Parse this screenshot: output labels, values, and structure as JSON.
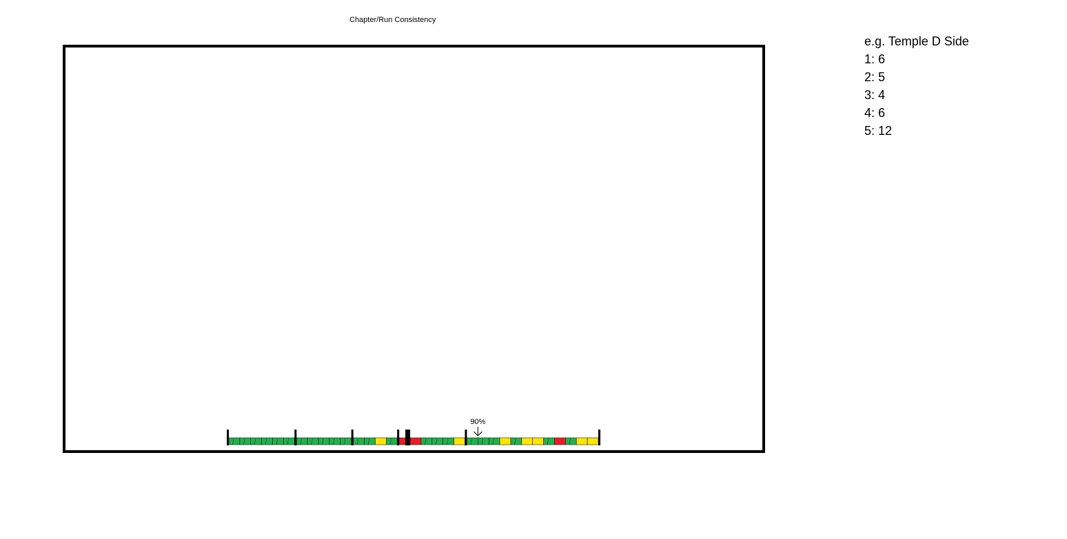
{
  "title": "Chapter/Run Consistency",
  "example": {
    "heading": "e.g. Temple D Side",
    "rooms": [
      {
        "label": "1: 6"
      },
      {
        "label": "2: 5"
      },
      {
        "label": "3: 4"
      },
      {
        "label": "4: 6"
      },
      {
        "label": "5: 12"
      }
    ]
  },
  "colors": {
    "green": "#22b14c",
    "yellow": "#ffe600",
    "red": "#ed1c24",
    "frame": "#000000"
  },
  "progress_bar": {
    "marker": {
      "label": "90%",
      "segment_index": 22
    },
    "current_segment_index": 16,
    "rooms": [
      {
        "room": 1,
        "segments": [
          "green",
          "green",
          "green",
          "green",
          "green",
          "green"
        ]
      },
      {
        "room": 2,
        "segments": [
          "green",
          "green",
          "green",
          "green",
          "green"
        ]
      },
      {
        "room": 3,
        "segments": [
          "green",
          "green",
          "yellow",
          "green"
        ]
      },
      {
        "room": 4,
        "segments": [
          "red",
          "red",
          "green",
          "green",
          "green",
          "yellow"
        ]
      },
      {
        "room": 5,
        "segments": [
          "green",
          "green",
          "green",
          "yellow",
          "green",
          "yellow",
          "yellow",
          "green",
          "red",
          "green",
          "yellow",
          "yellow"
        ]
      }
    ]
  }
}
